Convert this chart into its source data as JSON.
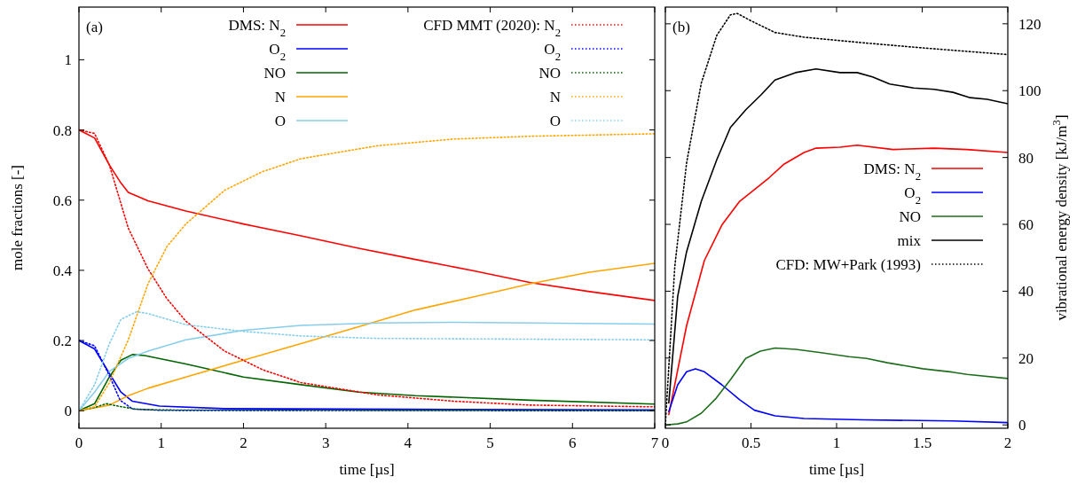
{
  "chart_data": [
    {
      "type": "line",
      "xlabel": "time [µs]",
      "ylabel": "mole fractions [-]",
      "xlim": [
        0,
        7
      ],
      "ylim": [
        -0.05,
        1.15
      ],
      "xticks": [
        0,
        1,
        2,
        3,
        4,
        5,
        6,
        7
      ],
      "yticks": [
        0,
        0.2,
        0.4,
        0.6,
        0.8,
        1
      ],
      "grid": false,
      "legend": "top",
      "annotations": [
        "(a)"
      ],
      "series": [
        {
          "name": "DMS: N$_{2}$",
          "color": "#ff0000",
          "line_style": "solid",
          "x": [
            0,
            0.19,
            0.37,
            0.51,
            0.6,
            0.84,
            1.3,
            2.0,
            2.7,
            3.4,
            4.09,
            4.79,
            5.49,
            6.19,
            7
          ],
          "values": [
            0.8,
            0.777,
            0.7,
            0.649,
            0.622,
            0.598,
            0.569,
            0.532,
            0.498,
            0.463,
            0.431,
            0.399,
            0.365,
            0.34,
            0.314
          ]
        },
        {
          "name": "O$_{2}$",
          "color": "#0000ff",
          "line_style": "solid",
          "x": [
            0,
            0.19,
            0.37,
            0.51,
            0.65,
            0.98,
            1.77,
            4,
            7
          ],
          "values": [
            0.2,
            0.176,
            0.106,
            0.053,
            0.027,
            0.013,
            0.006,
            0.004,
            0.002
          ]
        },
        {
          "name": "NO",
          "color": "#006400",
          "line_style": "solid",
          "x": [
            0,
            0.19,
            0.37,
            0.51,
            0.65,
            0.8,
            1.3,
            2.0,
            2.7,
            3.4,
            4.09,
            5.49,
            7
          ],
          "values": [
            0,
            0.02,
            0.096,
            0.144,
            0.16,
            0.157,
            0.133,
            0.096,
            0.074,
            0.053,
            0.043,
            0.03,
            0.019
          ]
        },
        {
          "name": "N",
          "color": "#ffa500",
          "line_style": "solid",
          "x": [
            0,
            0.37,
            0.6,
            0.84,
            1.3,
            2.0,
            2.7,
            3.4,
            4.09,
            4.79,
            5.49,
            6.19,
            7
          ],
          "values": [
            0,
            0.016,
            0.043,
            0.064,
            0.096,
            0.144,
            0.191,
            0.239,
            0.287,
            0.324,
            0.362,
            0.394,
            0.42
          ]
        },
        {
          "name": "O",
          "color": "#87ceeb",
          "line_style": "solid",
          "x": [
            0,
            0.19,
            0.37,
            0.6,
            0.84,
            1.3,
            2.0,
            2.7,
            3.63,
            4.56,
            5.49,
            7
          ],
          "values": [
            0,
            0.053,
            0.112,
            0.149,
            0.17,
            0.202,
            0.229,
            0.243,
            0.25,
            0.252,
            0.25,
            0.247
          ]
        },
        {
          "name": "CFD MMT (2020): N$_{2}$",
          "color": "#ff0000",
          "line_style": "dotted",
          "x": [
            0,
            0.19,
            0.37,
            0.6,
            0.84,
            1.07,
            1.3,
            1.77,
            2.23,
            2.7,
            3.63,
            4.56,
            5.49,
            7
          ],
          "values": [
            0.8,
            0.79,
            0.7,
            0.52,
            0.404,
            0.319,
            0.255,
            0.17,
            0.117,
            0.08,
            0.045,
            0.027,
            0.016,
            0.011
          ]
        },
        {
          "name": "O$_{2}$",
          "color": "#0000ff",
          "line_style": "dotted",
          "x": [
            0,
            0.19,
            0.37,
            0.5,
            0.65,
            1,
            7
          ],
          "values": [
            0.2,
            0.185,
            0.1,
            0.03,
            0.005,
            0.001,
            0
          ]
        },
        {
          "name": "NO",
          "color": "#006400",
          "line_style": "dotted",
          "x": [
            0,
            0.2,
            0.33,
            0.5,
            0.7,
            1,
            7
          ],
          "values": [
            0,
            0.01,
            0.02,
            0.012,
            0.004,
            0.002,
            0.001
          ]
        },
        {
          "name": "N",
          "color": "#ffa500",
          "line_style": "dotted",
          "x": [
            0,
            0.19,
            0.37,
            0.6,
            0.84,
            1.07,
            1.3,
            1.77,
            2.23,
            2.7,
            3.63,
            4.56,
            5.49,
            7
          ],
          "values": [
            0,
            0.011,
            0.08,
            0.202,
            0.362,
            0.468,
            0.532,
            0.628,
            0.681,
            0.718,
            0.755,
            0.774,
            0.782,
            0.789
          ]
        },
        {
          "name": "O",
          "color": "#87ceeb",
          "line_style": "dotted",
          "x": [
            0,
            0.19,
            0.37,
            0.51,
            0.7,
            0.84,
            1.3,
            2.0,
            2.7,
            3.63,
            7
          ],
          "values": [
            0,
            0.074,
            0.191,
            0.26,
            0.282,
            0.277,
            0.245,
            0.226,
            0.213,
            0.206,
            0.202
          ]
        }
      ]
    },
    {
      "type": "line",
      "xlabel": "time [µs]",
      "y2label": "vibrational energy density [kJ/m$^{3}$]",
      "xlim": [
        0,
        2
      ],
      "y2lim": [
        -1,
        125
      ],
      "xticks": [
        0,
        0.5,
        1,
        1.5,
        2
      ],
      "y2ticks": [
        0,
        20,
        40,
        60,
        80,
        100,
        120
      ],
      "grid": false,
      "legend": "right",
      "annotations": [
        "(b)"
      ],
      "series": [
        {
          "name": "DMS: N$_{2}$",
          "color": "#ff0000",
          "line_style": "solid",
          "axis": "y2",
          "x": [
            0.02,
            0.124,
            0.228,
            0.33,
            0.434,
            0.52,
            0.607,
            0.69,
            0.81,
            0.88,
            1.02,
            1.12,
            1.33,
            1.57,
            1.76,
            2
          ],
          "values": [
            3.1,
            29.7,
            49.2,
            59.8,
            66.9,
            70.4,
            74,
            77.9,
            81.5,
            82.8,
            83.1,
            83.7,
            82.4,
            82.8,
            82.4,
            81.5
          ]
        },
        {
          "name": "O$_{2}$",
          "color": "#0000ff",
          "line_style": "solid",
          "axis": "y2",
          "x": [
            0.02,
            0.072,
            0.124,
            0.176,
            0.228,
            0.33,
            0.434,
            0.52,
            0.641,
            0.81,
            1.159,
            1.676,
            2
          ],
          "values": [
            4,
            12,
            15.9,
            16.8,
            15.9,
            12,
            7.5,
            4.4,
            2.7,
            1.9,
            1.5,
            1.2,
            0.7
          ]
        },
        {
          "name": "NO",
          "color": "#1e6e1e",
          "line_style": "solid",
          "axis": "y2",
          "x": [
            0,
            0.072,
            0.124,
            0.21,
            0.297,
            0.383,
            0.469,
            0.555,
            0.641,
            0.762,
            0.9,
            1.072,
            1.176,
            1.297,
            1.503,
            1.57,
            1.676,
            1.762,
            2
          ],
          "values": [
            0,
            0.3,
            0.9,
            3.5,
            8,
            13.7,
            19.9,
            22.1,
            23,
            22.6,
            21.7,
            20.4,
            19.9,
            18.6,
            16.8,
            16.4,
            15.8,
            15.1,
            13.9
          ]
        },
        {
          "name": "mix",
          "color": "#000000",
          "line_style": "solid",
          "axis": "y2",
          "x": [
            0.02,
            0.072,
            0.124,
            0.21,
            0.3,
            0.38,
            0.47,
            0.56,
            0.64,
            0.76,
            0.88,
            1.02,
            1.12,
            1.21,
            1.31,
            1.45,
            1.57,
            1.68,
            1.78,
            1.88,
            2
          ],
          "values": [
            6.6,
            38.5,
            51.8,
            66.9,
            79.3,
            89,
            94.3,
            98.8,
            103.2,
            105.4,
            106.5,
            105.4,
            105.4,
            104.1,
            102,
            100.8,
            100.4,
            99.5,
            97.9,
            97.4,
            96.1
          ]
        },
        {
          "name": "CFD: MW+Park (1993)",
          "color": "#000000",
          "line_style": "dotted",
          "axis": "y2",
          "x": [
            0,
            0.055,
            0.124,
            0.21,
            0.3,
            0.38,
            0.42,
            0.5,
            0.64,
            0.81,
            1.16,
            1.5,
            2
          ],
          "values": [
            0,
            47.4,
            78.4,
            102.3,
            116.5,
            122.7,
            123.1,
            120.9,
            117.4,
            116,
            114.3,
            112.8,
            110.8
          ]
        }
      ]
    }
  ]
}
